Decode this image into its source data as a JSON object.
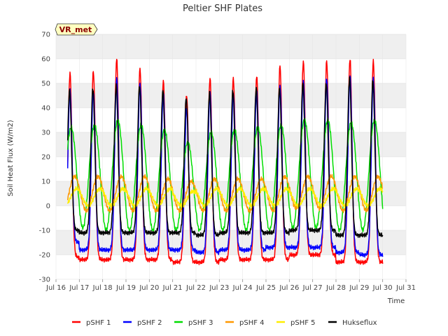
{
  "chart_data": {
    "type": "line",
    "title": "Peltier SHF Plates",
    "xlabel": "Time",
    "ylabel": "Soil Heat Flux (W/m2)",
    "badge": "VR_met",
    "ylim": [
      -30,
      70
    ],
    "yticks": [
      -30,
      -20,
      -10,
      0,
      10,
      20,
      30,
      40,
      50,
      60,
      70
    ],
    "xlim": [
      16,
      31
    ],
    "xticks": [
      {
        "value": 16,
        "label": "Jul 16"
      },
      {
        "value": 17,
        "label": "Jul 17"
      },
      {
        "value": 18,
        "label": "Jul 18"
      },
      {
        "value": 19,
        "label": "Jul 19"
      },
      {
        "value": 20,
        "label": "Jul 20"
      },
      {
        "value": 21,
        "label": "Jul 21"
      },
      {
        "value": 22,
        "label": "Jul 22"
      },
      {
        "value": 23,
        "label": "Jul 23"
      },
      {
        "value": 24,
        "label": "Jul 24"
      },
      {
        "value": 25,
        "label": "Jul 25"
      },
      {
        "value": 26,
        "label": "Jul 26"
      },
      {
        "value": 27,
        "label": "Jul 27"
      },
      {
        "value": 28,
        "label": "Jul 28"
      },
      {
        "value": 29,
        "label": "Jul 29"
      },
      {
        "value": 30,
        "label": "Jul 30"
      },
      {
        "value": 31,
        "label": "Jul 31"
      }
    ],
    "x_start": 16.5,
    "x_end": 30.0,
    "peak_phase": 0.58,
    "legend_position": "bottom",
    "series": [
      {
        "name": "pSHF 1",
        "color": "#ff0000",
        "shape": "sharp",
        "phase_shift": 0.02,
        "peaks": [
          54,
          55,
          60,
          56,
          51,
          45,
          52,
          52,
          53,
          57,
          59,
          59,
          60,
          59
        ],
        "troughs": [
          -21,
          -22,
          -22,
          -22,
          -22,
          -23,
          -23,
          -22,
          -22,
          -22,
          -20,
          -20,
          -23,
          -23
        ]
      },
      {
        "name": "pSHF 2",
        "color": "#0000ff",
        "shape": "sharp",
        "phase_shift": 0.02,
        "peaks": [
          47,
          47,
          52,
          50,
          46,
          40,
          46,
          46,
          47,
          49,
          51,
          52,
          53,
          52
        ],
        "troughs": [
          -15,
          -18,
          -18,
          -18,
          -18,
          -18,
          -19,
          -18,
          -18,
          -17,
          -17,
          -17,
          -19,
          -20
        ]
      },
      {
        "name": "pSHF 3",
        "color": "#00dd00",
        "shape": "smooth",
        "phase_shift": 0.07,
        "peaks": [
          32,
          33,
          35,
          33,
          31,
          26,
          30,
          31,
          32,
          33,
          35,
          35,
          34,
          35
        ],
        "troughs": [
          -8,
          -9,
          -10,
          -10,
          -10,
          -10,
          -10,
          -10,
          -10,
          -10,
          -9,
          -9,
          -10,
          -10
        ]
      },
      {
        "name": "pSHF 4",
        "color": "#ff9900",
        "shape": "smooth",
        "phase_shift": 0.22,
        "peaks": [
          12,
          12,
          12,
          12,
          11,
          10,
          11,
          11,
          11,
          12,
          12,
          12,
          12,
          12
        ],
        "troughs": [
          -2,
          -2,
          -2,
          -2,
          -2,
          -2,
          -2,
          -2,
          -2,
          -2,
          -1,
          -1,
          -2,
          -2
        ]
      },
      {
        "name": "pSHF 5",
        "color": "#ffee00",
        "shape": "smooth",
        "phase_shift": 0.3,
        "peaks": [
          7,
          7,
          7,
          7,
          7,
          6,
          7,
          7,
          7,
          7,
          7,
          7,
          7,
          7
        ],
        "troughs": [
          0,
          0,
          0,
          0,
          0,
          0,
          0,
          0,
          0,
          0,
          0,
          0,
          0,
          0
        ]
      },
      {
        "name": "Hukseflux",
        "color": "#000000",
        "shape": "sharp",
        "phase_shift": 0.0,
        "peaks": [
          47,
          48,
          49,
          49,
          47,
          44,
          46,
          47,
          48,
          48,
          50,
          50,
          52,
          51
        ],
        "troughs": [
          -10,
          -11,
          -11,
          -11,
          -11,
          -11,
          -12,
          -11,
          -11,
          -11,
          -10,
          -10,
          -12,
          -12
        ]
      }
    ]
  }
}
